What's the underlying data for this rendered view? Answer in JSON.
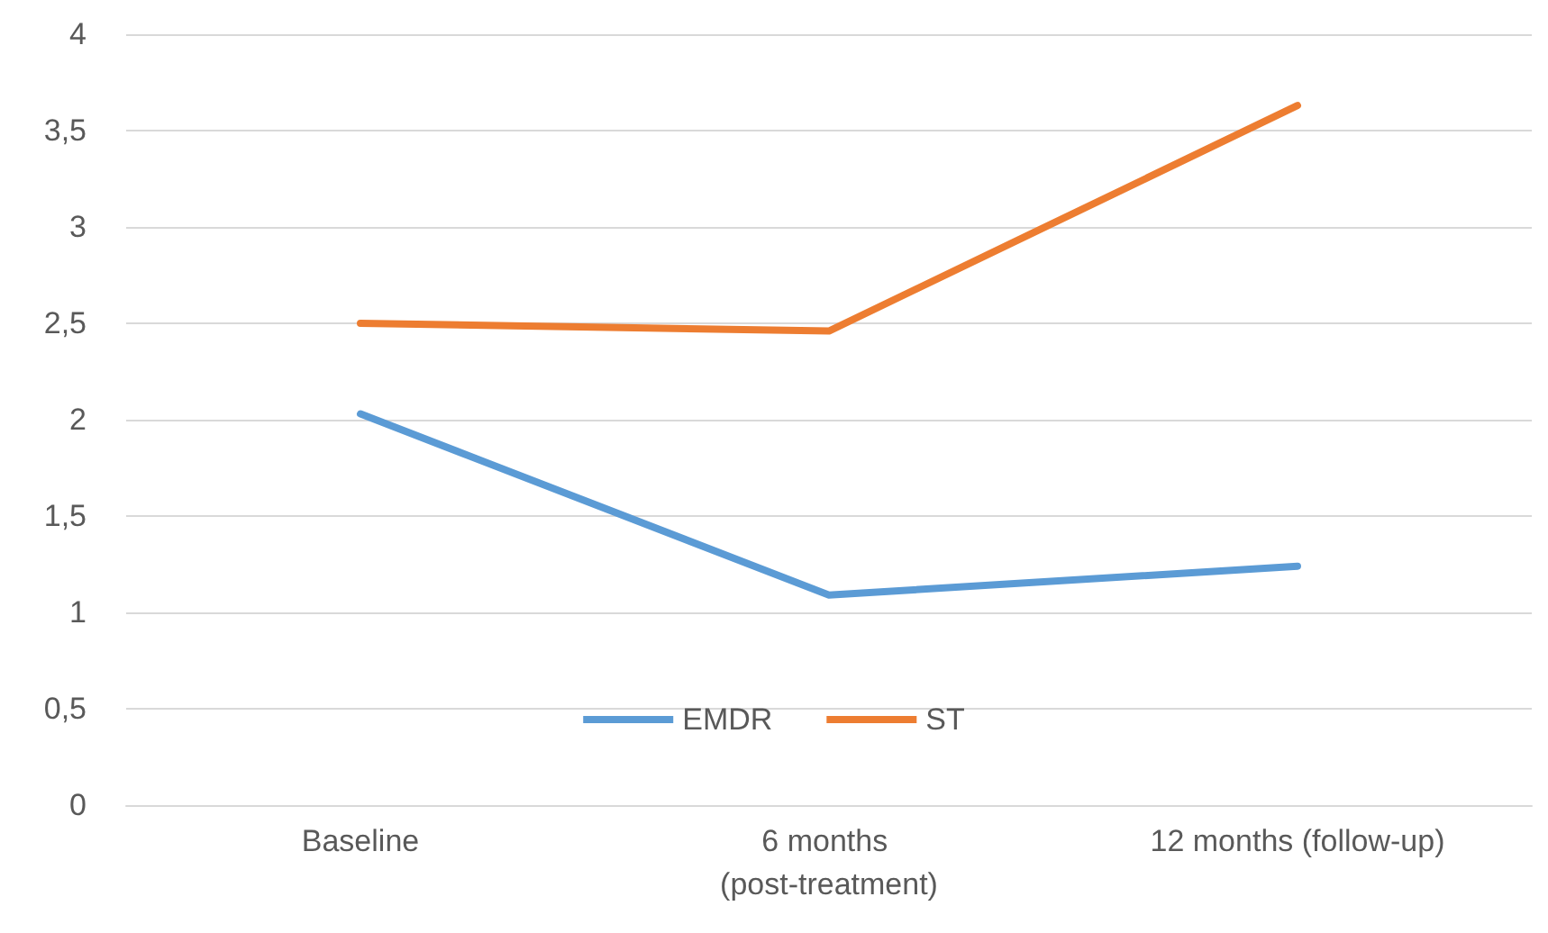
{
  "chart_data": {
    "type": "line",
    "categories": [
      "Baseline",
      "6 months (post-treatment)",
      "12 months (follow-up)"
    ],
    "series": [
      {
        "name": "EMDR",
        "color": "#5b9bd5",
        "values": [
          2.03,
          1.09,
          1.24
        ]
      },
      {
        "name": "ST",
        "color": "#ed7d31",
        "values": [
          2.5,
          2.46,
          3.63
        ]
      }
    ],
    "ylim": [
      0,
      4
    ],
    "yticks": [
      0,
      {
        "value": 0.5,
        "label": "0,5"
      },
      1,
      {
        "value": 1.5,
        "label": "1,5"
      },
      2,
      {
        "value": 2.5,
        "label": "2,5"
      },
      3,
      {
        "value": 3.5,
        "label": "3,5"
      },
      4
    ],
    "grid": "y",
    "legend": "bottom",
    "marker": "none",
    "line_style": "solid"
  }
}
